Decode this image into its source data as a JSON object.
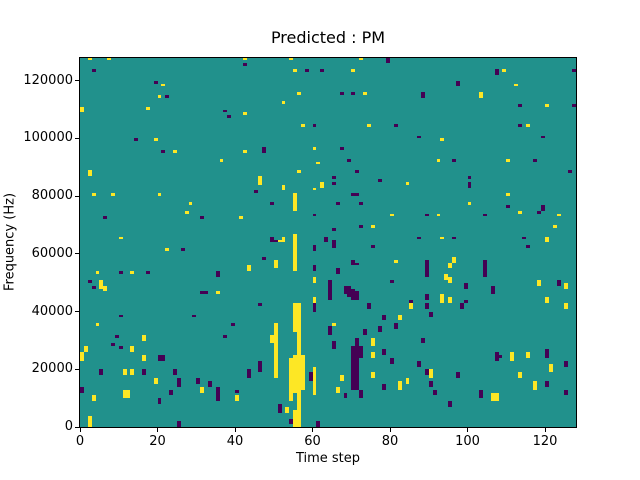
{
  "figure": {
    "title": "Predicted : PM",
    "xlabel": "Time step",
    "ylabel": "Frequency (Hz)"
  },
  "chart_data": {
    "type": "heatmap",
    "title": "Predicted : PM",
    "xlabel": "Time step",
    "ylabel": "Frequency (Hz)",
    "x_range": [
      0,
      128
    ],
    "y_range": [
      0,
      128000
    ],
    "x_ticks": [
      0,
      20,
      40,
      60,
      80,
      100,
      120
    ],
    "y_ticks": [
      0,
      20000,
      40000,
      60000,
      80000,
      100000,
      120000
    ],
    "grid": [
      128,
      128
    ],
    "freq_bin_hz": 1000,
    "colormap": "viridis",
    "grid_lines": "off",
    "legend": "none",
    "colors": {
      "mid": "#21918c",
      "high": "#fde725",
      "low": "#440154",
      "spine": "#000000",
      "background": "#ffffff"
    },
    "value_levels": {
      "low": 0,
      "mid": 0.5,
      "high": 1
    },
    "cells_high_runs": [
      [
        2,
        127,
        127
      ],
      [
        7,
        127,
        127
      ],
      [
        42,
        127,
        127
      ],
      [
        54,
        127,
        127
      ],
      [
        72,
        127,
        127
      ],
      [
        55,
        123,
        123
      ],
      [
        70,
        123,
        123
      ],
      [
        109,
        123,
        123
      ],
      [
        21,
        118,
        118
      ],
      [
        112,
        118,
        118
      ],
      [
        56,
        115,
        115
      ],
      [
        73,
        115,
        115
      ],
      [
        103,
        114,
        115
      ],
      [
        20,
        114,
        114
      ],
      [
        52,
        112,
        112
      ],
      [
        120,
        111,
        111
      ],
      [
        0,
        109,
        110
      ],
      [
        17,
        110,
        110
      ],
      [
        42,
        108,
        108
      ],
      [
        57,
        104,
        104
      ],
      [
        74,
        104,
        104
      ],
      [
        115,
        104,
        104
      ],
      [
        19,
        99,
        99
      ],
      [
        93,
        99,
        99
      ],
      [
        60,
        96,
        96
      ],
      [
        24,
        95,
        95
      ],
      [
        42,
        95,
        95
      ],
      [
        36,
        92,
        92
      ],
      [
        92,
        92,
        92
      ],
      [
        110,
        92,
        92
      ],
      [
        61,
        91,
        91
      ],
      [
        2,
        87,
        88
      ],
      [
        56,
        88,
        88
      ],
      [
        46,
        84,
        86
      ],
      [
        62,
        83,
        84
      ],
      [
        84,
        84,
        84
      ],
      [
        3,
        80,
        80
      ],
      [
        8,
        80,
        80
      ],
      [
        20,
        80,
        80
      ],
      [
        110,
        80,
        80
      ],
      [
        52,
        82,
        83
      ],
      [
        60,
        82,
        82
      ],
      [
        28,
        77,
        77
      ],
      [
        100,
        77,
        77
      ],
      [
        27,
        74,
        74
      ],
      [
        80,
        73,
        73
      ],
      [
        92,
        73,
        73
      ],
      [
        123,
        73,
        73
      ],
      [
        113,
        74,
        74
      ],
      [
        41,
        72,
        72
      ],
      [
        75,
        69,
        69
      ],
      [
        122,
        69,
        69
      ],
      [
        10,
        65,
        65
      ],
      [
        51,
        64,
        64
      ],
      [
        52,
        64,
        65
      ],
      [
        93,
        65,
        65
      ],
      [
        120,
        64,
        65
      ],
      [
        22,
        61,
        61
      ],
      [
        96,
        57,
        58
      ],
      [
        95,
        55,
        56
      ],
      [
        81,
        57,
        57
      ],
      [
        43,
        54,
        55
      ],
      [
        50,
        55,
        57
      ],
      [
        4,
        53,
        53
      ],
      [
        13,
        53,
        53
      ],
      [
        94,
        51,
        52
      ],
      [
        95,
        50,
        51
      ],
      [
        60,
        50,
        51
      ],
      [
        5,
        48,
        50
      ],
      [
        6,
        47,
        48
      ],
      [
        118,
        49,
        50
      ],
      [
        125,
        48,
        49
      ],
      [
        35,
        46,
        46
      ],
      [
        60,
        43,
        44
      ],
      [
        93,
        43,
        45
      ],
      [
        95,
        43,
        44
      ],
      [
        120,
        43,
        44
      ],
      [
        54,
        9,
        23
      ],
      [
        55,
        75,
        80
      ],
      [
        55,
        54,
        66
      ],
      [
        55,
        33,
        42
      ],
      [
        55,
        12,
        24
      ],
      [
        55,
        0,
        5
      ],
      [
        56,
        0,
        42
      ],
      [
        57,
        13,
        24
      ],
      [
        50,
        17,
        35
      ],
      [
        49,
        29,
        31
      ],
      [
        85,
        41,
        42
      ],
      [
        125,
        41,
        42
      ],
      [
        82,
        37,
        38
      ],
      [
        4,
        35,
        35
      ],
      [
        65,
        35,
        35
      ],
      [
        16,
        30,
        31
      ],
      [
        75,
        28,
        30
      ],
      [
        13,
        26,
        27
      ],
      [
        1,
        26,
        27
      ],
      [
        0,
        23,
        25
      ],
      [
        16,
        23,
        24
      ],
      [
        75,
        24,
        25
      ],
      [
        111,
        23,
        25
      ],
      [
        115,
        24,
        25
      ],
      [
        121,
        19,
        21
      ],
      [
        11,
        18,
        19
      ],
      [
        13,
        18,
        19
      ],
      [
        90,
        17,
        19
      ],
      [
        19,
        15,
        16
      ],
      [
        67,
        16,
        17
      ],
      [
        75,
        17,
        18
      ],
      [
        113,
        17,
        18
      ],
      [
        84,
        15,
        16
      ],
      [
        82,
        13,
        15
      ],
      [
        117,
        13,
        15
      ],
      [
        31,
        12,
        13
      ],
      [
        66,
        12,
        13
      ],
      [
        11,
        10,
        12
      ],
      [
        12,
        10,
        12
      ],
      [
        3,
        9,
        10
      ],
      [
        40,
        9,
        10
      ],
      [
        106,
        9,
        11
      ],
      [
        107,
        9,
        11
      ],
      [
        60,
        11,
        20
      ],
      [
        53,
        5,
        6
      ],
      [
        2,
        0,
        3
      ]
    ],
    "cells_low_runs": [
      [
        42,
        125,
        125
      ],
      [
        3,
        123,
        123
      ],
      [
        58,
        123,
        123
      ],
      [
        62,
        123,
        123
      ],
      [
        107,
        122,
        123
      ],
      [
        127,
        123,
        123
      ],
      [
        19,
        119,
        119
      ],
      [
        97,
        118,
        119
      ],
      [
        22,
        114,
        114
      ],
      [
        67,
        115,
        115
      ],
      [
        70,
        115,
        115
      ],
      [
        88,
        114,
        115
      ],
      [
        37,
        109,
        109
      ],
      [
        38,
        107,
        107
      ],
      [
        113,
        111,
        111
      ],
      [
        127,
        111,
        111
      ],
      [
        79,
        126,
        127
      ],
      [
        60,
        104,
        104
      ],
      [
        81,
        104,
        104
      ],
      [
        113,
        104,
        104
      ],
      [
        14,
        99,
        99
      ],
      [
        87,
        100,
        100
      ],
      [
        119,
        100,
        100
      ],
      [
        21,
        95,
        95
      ],
      [
        47,
        95,
        96
      ],
      [
        67,
        96,
        96
      ],
      [
        69,
        92,
        92
      ],
      [
        96,
        92,
        92
      ],
      [
        117,
        92,
        92
      ],
      [
        71,
        88,
        88
      ],
      [
        126,
        88,
        88
      ],
      [
        65,
        86,
        86
      ],
      [
        100,
        86,
        86
      ],
      [
        77,
        85,
        85
      ],
      [
        100,
        83,
        84
      ],
      [
        65,
        84,
        84
      ],
      [
        45,
        81,
        81
      ],
      [
        70,
        80,
        80
      ],
      [
        71,
        80,
        80
      ],
      [
        49,
        77,
        77
      ],
      [
        66,
        77,
        77
      ],
      [
        72,
        77,
        77
      ],
      [
        6,
        72,
        72
      ],
      [
        31,
        72,
        72
      ],
      [
        89,
        73,
        73
      ],
      [
        104,
        73,
        73
      ],
      [
        110,
        76,
        76
      ],
      [
        118,
        74,
        74
      ],
      [
        119,
        75,
        76
      ],
      [
        60,
        73,
        73
      ],
      [
        65,
        68,
        68
      ],
      [
        72,
        69,
        69
      ],
      [
        26,
        61,
        61
      ],
      [
        49,
        64,
        65
      ],
      [
        50,
        64,
        64
      ],
      [
        63,
        64,
        65
      ],
      [
        65,
        62,
        64
      ],
      [
        87,
        65,
        65
      ],
      [
        96,
        65,
        65
      ],
      [
        114,
        65,
        65
      ],
      [
        60,
        61,
        62
      ],
      [
        75,
        62,
        62
      ],
      [
        115,
        62,
        62
      ],
      [
        10,
        53,
        53
      ],
      [
        17,
        53,
        53
      ],
      [
        35,
        52,
        53
      ],
      [
        47,
        58,
        58
      ],
      [
        70,
        56,
        57
      ],
      [
        71,
        56,
        56
      ],
      [
        60,
        54,
        55
      ],
      [
        66,
        53,
        54
      ],
      [
        89,
        52,
        57
      ],
      [
        104,
        52,
        57
      ],
      [
        2,
        50,
        50
      ],
      [
        3,
        48,
        48
      ],
      [
        80,
        50,
        50
      ],
      [
        99,
        48,
        49
      ],
      [
        31,
        46,
        46
      ],
      [
        32,
        46,
        46
      ],
      [
        64,
        44,
        50
      ],
      [
        68,
        46,
        48
      ],
      [
        69,
        45,
        48
      ],
      [
        70,
        44,
        47
      ],
      [
        71,
        44,
        46
      ],
      [
        106,
        46,
        48
      ],
      [
        123,
        49,
        50
      ],
      [
        89,
        44,
        45
      ],
      [
        99,
        43,
        43
      ],
      [
        85,
        43,
        43
      ],
      [
        46,
        42,
        42
      ],
      [
        89,
        41,
        42
      ],
      [
        90,
        38,
        39
      ],
      [
        98,
        41,
        42
      ],
      [
        60,
        40,
        42
      ],
      [
        74,
        41,
        42
      ],
      [
        78,
        37,
        38
      ],
      [
        10,
        38,
        38
      ],
      [
        29,
        38,
        38
      ],
      [
        39,
        35,
        35
      ],
      [
        81,
        34,
        35
      ],
      [
        77,
        33,
        34
      ],
      [
        64,
        32,
        34
      ],
      [
        9,
        31,
        31
      ],
      [
        37,
        31,
        31
      ],
      [
        65,
        27,
        29
      ],
      [
        73,
        32,
        33
      ],
      [
        8,
        28,
        28
      ],
      [
        10,
        27,
        27
      ],
      [
        88,
        29,
        30
      ],
      [
        78,
        25,
        26
      ],
      [
        80,
        22,
        23
      ],
      [
        20,
        23,
        24
      ],
      [
        21,
        23,
        24
      ],
      [
        46,
        19,
        22
      ],
      [
        43,
        17,
        19
      ],
      [
        87,
        21,
        22
      ],
      [
        5,
        18,
        19
      ],
      [
        16,
        18,
        19
      ],
      [
        24,
        18,
        19
      ],
      [
        89,
        18,
        19
      ],
      [
        97,
        17,
        18
      ],
      [
        59,
        16,
        18
      ],
      [
        107,
        23,
        25
      ],
      [
        108,
        24,
        24
      ],
      [
        120,
        24,
        26
      ],
      [
        125,
        21,
        22
      ],
      [
        25,
        14,
        16
      ],
      [
        30,
        15,
        16
      ],
      [
        33,
        14,
        15
      ],
      [
        90,
        14,
        15
      ],
      [
        120,
        14,
        15
      ],
      [
        78,
        13,
        14
      ],
      [
        0,
        12,
        13
      ],
      [
        23,
        11,
        12
      ],
      [
        35,
        9,
        13
      ],
      [
        40,
        12,
        12
      ],
      [
        91,
        11,
        12
      ],
      [
        103,
        10,
        12
      ],
      [
        125,
        11,
        12
      ],
      [
        20,
        8,
        9
      ],
      [
        95,
        7,
        8
      ],
      [
        68,
        10,
        11
      ],
      [
        72,
        10,
        12
      ],
      [
        70,
        13,
        27
      ],
      [
        71,
        13,
        30
      ],
      [
        72,
        24,
        27
      ],
      [
        51,
        5,
        7
      ],
      [
        54,
        1,
        2
      ],
      [
        61,
        0,
        1
      ],
      [
        25,
        0,
        1
      ]
    ]
  }
}
